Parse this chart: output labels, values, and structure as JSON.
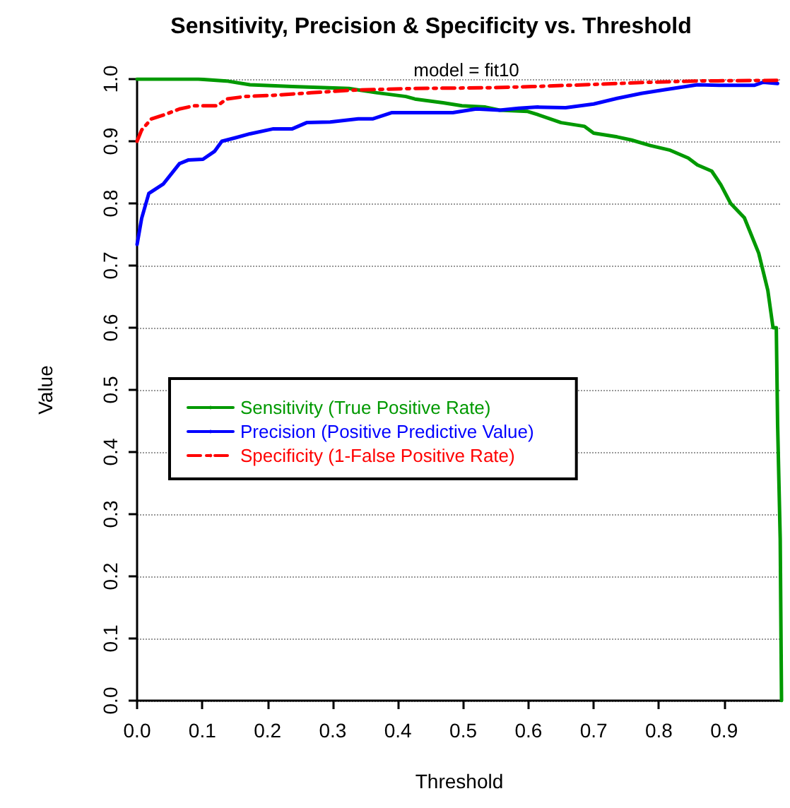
{
  "chart_data": {
    "type": "line",
    "title": "Sensitivity, Precision & Specificity vs. Threshold",
    "subtitle": "model = fit10",
    "xlabel": "Threshold",
    "ylabel": "Value",
    "xlim": [
      0,
      0.988
    ],
    "xticks": [
      {
        "value": 0,
        "label": "0.0"
      },
      0.1,
      0.2,
      0.3,
      0.4,
      0.5,
      0.6,
      0.7,
      0.8,
      0.9
    ],
    "ylim": [
      0,
      1
    ],
    "yticks": [
      {
        "value": 0,
        "label": "0.0"
      },
      0.1,
      0.2,
      0.3,
      0.4,
      0.5,
      0.6,
      0.7,
      0.8,
      0.9,
      {
        "value": 1,
        "label": "1.0"
      }
    ],
    "grid": "y",
    "legend": "left",
    "marker": "none",
    "series": [
      {
        "name": "Sensitivity (True Positive Rate)",
        "color": "#009900",
        "line_style": "solid",
        "x": [
          0,
          0.094,
          0.137,
          0.173,
          0.238,
          0.325,
          0.368,
          0.412,
          0.426,
          0.469,
          0.498,
          0.534,
          0.556,
          0.599,
          0.614,
          0.65,
          0.686,
          0.7,
          0.736,
          0.758,
          0.787,
          0.816,
          0.845,
          0.859,
          0.881,
          0.895,
          0.91,
          0.931,
          0.953,
          0.967,
          0.975,
          0.98,
          0.982,
          0.986,
          0.988
        ],
        "values": [
          1,
          1,
          0.997,
          0.991,
          0.988,
          0.985,
          0.978,
          0.972,
          0.968,
          0.962,
          0.957,
          0.955,
          0.95,
          0.948,
          0.943,
          0.93,
          0.924,
          0.913,
          0.907,
          0.902,
          0.893,
          0.886,
          0.873,
          0.862,
          0.852,
          0.83,
          0.8,
          0.777,
          0.72,
          0.66,
          0.6,
          0.6,
          0.445,
          0.26,
          0
        ]
      },
      {
        "name": "Precision (Positive Predictive Value)",
        "color": "#0000ff",
        "line_style": "solid",
        "x": [
          0,
          0.007,
          0.018,
          0.04,
          0.065,
          0.079,
          0.101,
          0.119,
          0.13,
          0.152,
          0.173,
          0.209,
          0.238,
          0.26,
          0.296,
          0.339,
          0.361,
          0.39,
          0.426,
          0.484,
          0.52,
          0.556,
          0.585,
          0.614,
          0.657,
          0.7,
          0.736,
          0.773,
          0.809,
          0.859,
          0.895,
          0.946,
          0.96,
          0.982
        ],
        "values": [
          0.734,
          0.776,
          0.816,
          0.831,
          0.864,
          0.87,
          0.871,
          0.884,
          0.9,
          0.906,
          0.912,
          0.92,
          0.92,
          0.93,
          0.931,
          0.936,
          0.936,
          0.946,
          0.946,
          0.946,
          0.952,
          0.95,
          0.953,
          0.955,
          0.954,
          0.96,
          0.969,
          0.977,
          0.983,
          0.991,
          0.99,
          0.99,
          0.995,
          0.993
        ]
      },
      {
        "name": "Specificity (1-False Positive Rate)",
        "color": "#ff0000",
        "line_style": "dashed",
        "x": [
          0,
          0.007,
          0.022,
          0.043,
          0.065,
          0.087,
          0.123,
          0.137,
          0.166,
          0.209,
          0.267,
          0.325,
          0.426,
          0.534,
          0.606,
          0.715,
          0.787,
          0.859,
          0.988
        ],
        "values": [
          0.9,
          0.918,
          0.936,
          0.943,
          0.952,
          0.957,
          0.957,
          0.968,
          0.972,
          0.974,
          0.978,
          0.982,
          0.985,
          0.986,
          0.988,
          0.992,
          0.995,
          0.997,
          0.998
        ]
      }
    ]
  }
}
